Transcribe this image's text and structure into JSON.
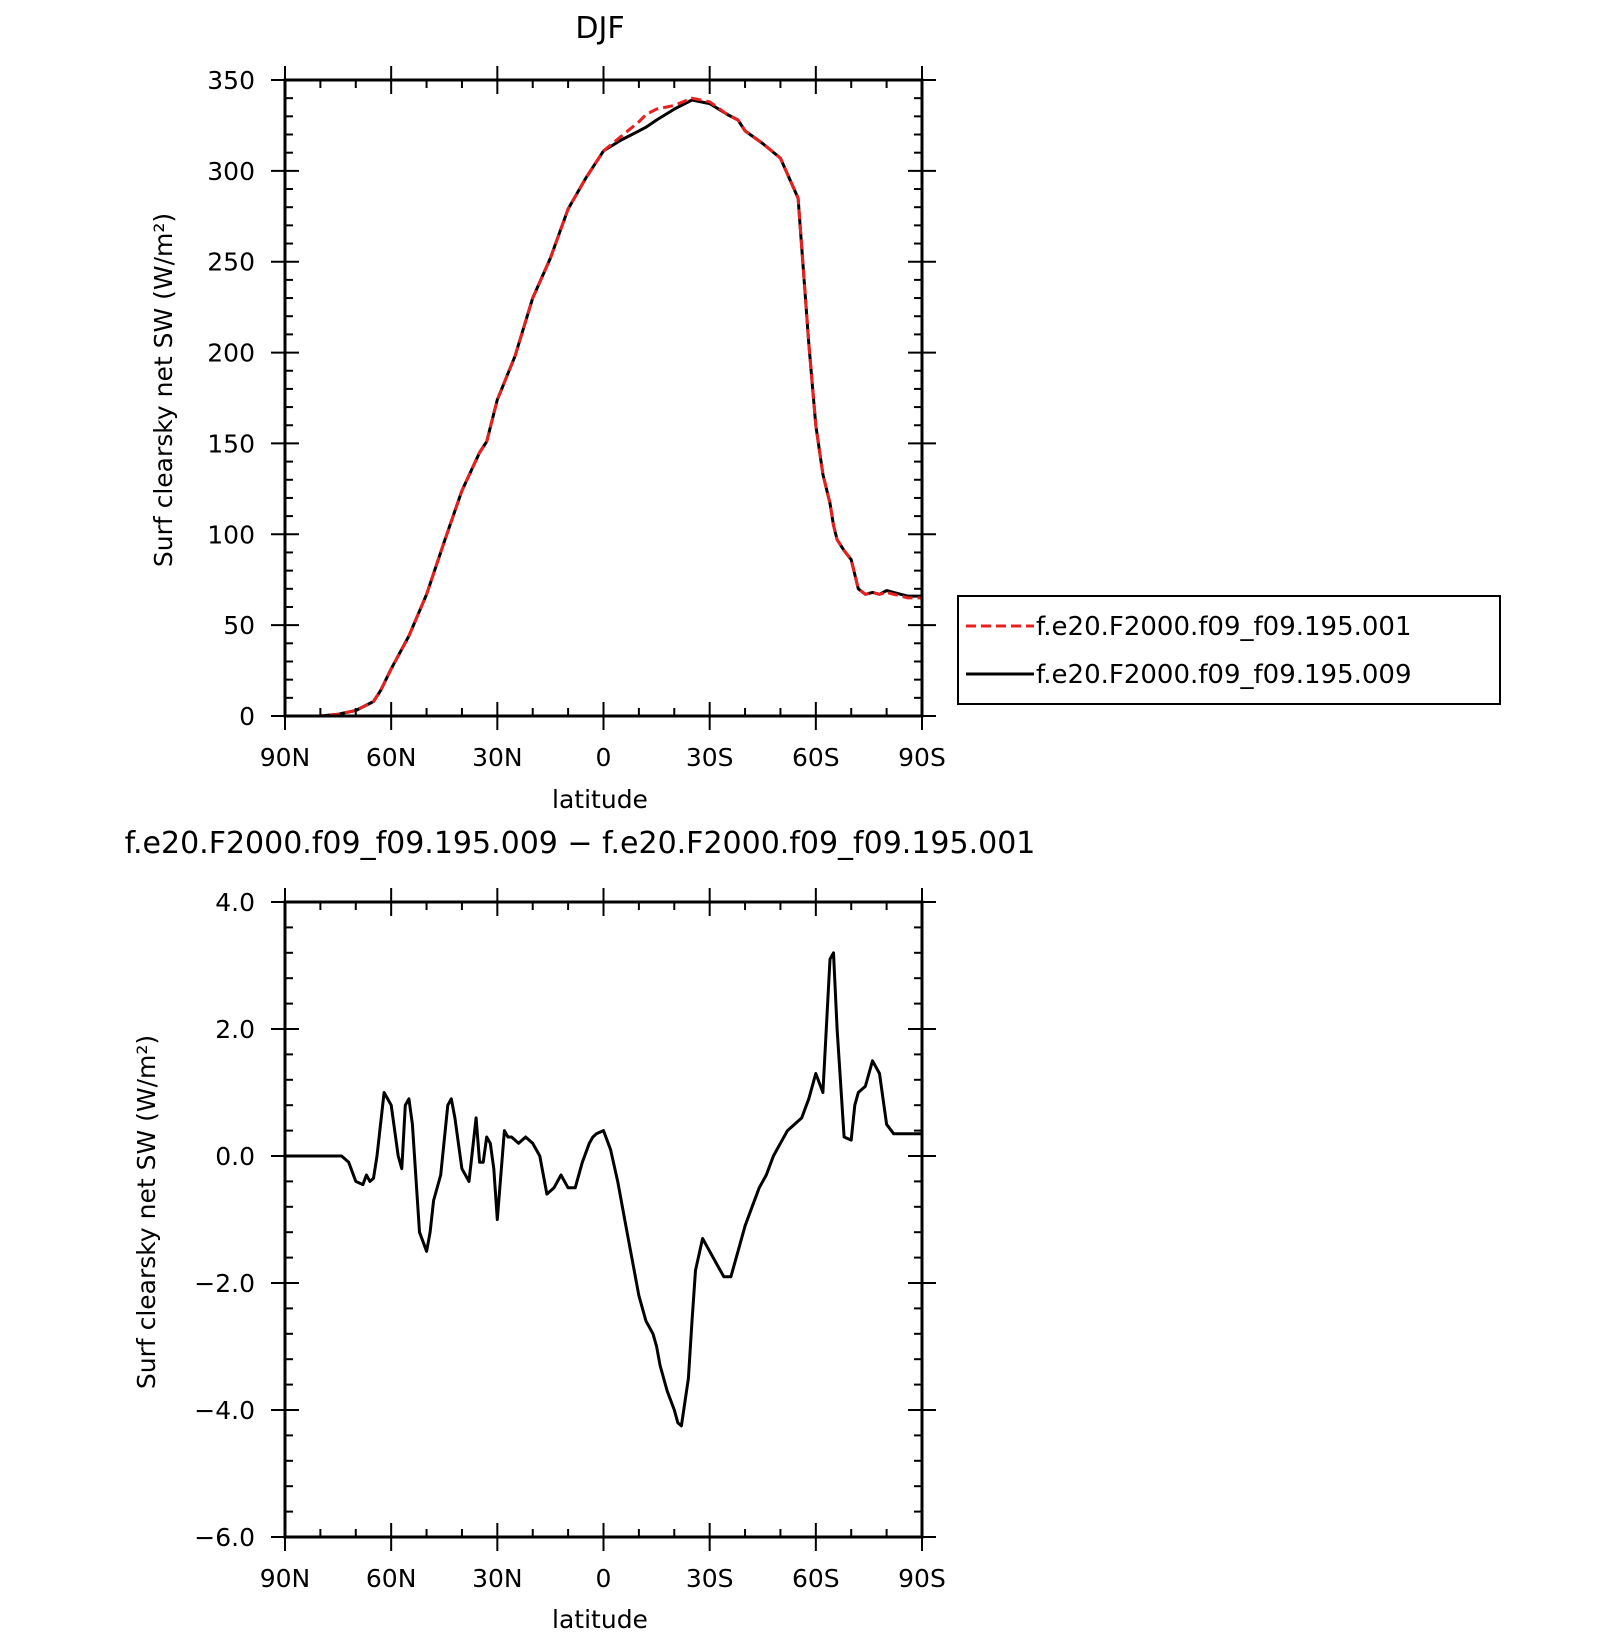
{
  "chart_data": [
    {
      "type": "line",
      "title": "DJF",
      "xlabel": "latitude",
      "ylabel": "Surf clearsky net SW (W/m²)",
      "xlim": [
        90,
        -90
      ],
      "ylim": [
        0,
        350
      ],
      "xtick_values": [
        90,
        60,
        30,
        0,
        -30,
        -60,
        -90
      ],
      "xtick_labels": [
        "90N",
        "60N",
        "30N",
        "0",
        "30S",
        "60S",
        "90S"
      ],
      "ytick_values": [
        0,
        50,
        100,
        150,
        200,
        250,
        300,
        350
      ],
      "ytick_labels": [
        "0",
        "50",
        "100",
        "150",
        "200",
        "250",
        "300",
        "350"
      ],
      "legend_position": "right",
      "series": [
        {
          "name": "f.e20.F2000.f09_f09.195.001",
          "color": "#e8201e",
          "dash": "dashed",
          "x": [
            90,
            80,
            75,
            70,
            65,
            63,
            60,
            55,
            50,
            45,
            40,
            35,
            33,
            30,
            25,
            20,
            15,
            10,
            5,
            0,
            -5,
            -10,
            -12,
            -15,
            -20,
            -25,
            -30,
            -35,
            -38,
            -40,
            -45,
            -50,
            -55,
            -58,
            -60,
            -62,
            -64,
            -65,
            -66,
            -68,
            -70,
            -72,
            -74,
            -76,
            -78,
            -80,
            -82,
            -84,
            -86,
            -88,
            -90
          ],
          "y": [
            0,
            0,
            1,
            3,
            8,
            14,
            26,
            44,
            67,
            96,
            124,
            145,
            151,
            174,
            198,
            230,
            252,
            279,
            296,
            311,
            319,
            327,
            331,
            334,
            336,
            340,
            338,
            331,
            328,
            322,
            315,
            307,
            285,
            205,
            160,
            133,
            117,
            105,
            97,
            91,
            86,
            70,
            67,
            68,
            67,
            68,
            67,
            66,
            65,
            65,
            65
          ]
        },
        {
          "name": "f.e20.F2000.f09_f09.195.009",
          "color": "#000000",
          "dash": "solid",
          "x": [
            90,
            80,
            75,
            70,
            65,
            63,
            60,
            55,
            50,
            45,
            40,
            35,
            33,
            30,
            25,
            20,
            15,
            10,
            5,
            0,
            -5,
            -10,
            -12,
            -15,
            -20,
            -25,
            -30,
            -35,
            -38,
            -40,
            -45,
            -50,
            -55,
            -58,
            -60,
            -62,
            -64,
            -65,
            -66,
            -68,
            -70,
            -72,
            -74,
            -76,
            -78,
            -80,
            -82,
            -84,
            -86,
            -88,
            -90
          ],
          "y": [
            0,
            0,
            1,
            3,
            8,
            14,
            26,
            44,
            67,
            96,
            124,
            145,
            151,
            174,
            198,
            230,
            252,
            279,
            296,
            311,
            317,
            322,
            324,
            328,
            334,
            339,
            337,
            331,
            328,
            322,
            315,
            307,
            285,
            205,
            160,
            133,
            117,
            105,
            97,
            91,
            86,
            70,
            67,
            68,
            67,
            69,
            68,
            67,
            66,
            66,
            66
          ]
        }
      ]
    },
    {
      "type": "line",
      "title": "f.e20.F2000.f09_f09.195.009 − f.e20.F2000.f09_f09.195.001",
      "xlabel": "latitude",
      "ylabel": "Surf clearsky net SW (W/m²)",
      "xlim": [
        90,
        -90
      ],
      "ylim": [
        -6,
        4
      ],
      "xtick_values": [
        90,
        60,
        30,
        0,
        -30,
        -60,
        -90
      ],
      "xtick_labels": [
        "90N",
        "60N",
        "30N",
        "0",
        "30S",
        "60S",
        "90S"
      ],
      "ytick_values": [
        4,
        2,
        0,
        -2,
        -4,
        -6
      ],
      "ytick_labels": [
        "4.0",
        "2.0",
        "0.0",
        "−2.0",
        "−4.0",
        "−6.0"
      ],
      "series": [
        {
          "color": "#000000",
          "x": [
            90,
            86,
            82,
            78,
            76,
            74,
            72,
            70,
            68,
            67,
            66,
            65,
            64,
            62,
            60,
            58,
            57,
            56,
            55,
            54,
            52,
            50,
            49,
            48,
            46,
            44,
            43,
            42,
            40,
            38,
            36,
            35,
            34,
            33,
            32,
            31,
            30,
            28,
            27,
            26,
            24,
            22,
            20,
            18,
            16,
            14,
            13,
            12,
            10,
            8,
            6,
            4,
            3,
            2,
            0,
            -2,
            -4,
            -6,
            -8,
            -10,
            -12,
            -14,
            -15,
            -16,
            -18,
            -20,
            -21,
            -22,
            -24,
            -25,
            -26,
            -28,
            -30,
            -32,
            -34,
            -36,
            -38,
            -40,
            -42,
            -44,
            -46,
            -48,
            -50,
            -52,
            -54,
            -56,
            -58,
            -60,
            -62,
            -64,
            -65,
            -66,
            -68,
            -70,
            -71,
            -72,
            -74,
            -76,
            -78,
            -80,
            -82,
            -84,
            -86,
            -88,
            -90
          ],
          "y": [
            0,
            0,
            0,
            0,
            0,
            0,
            -0.1,
            -0.4,
            -0.45,
            -0.3,
            -0.4,
            -0.35,
            0,
            1.0,
            0.8,
            0,
            -0.2,
            0.8,
            0.9,
            0.5,
            -1.2,
            -1.5,
            -1.2,
            -0.7,
            -0.3,
            0.8,
            0.9,
            0.6,
            -0.2,
            -0.4,
            0.6,
            -0.1,
            -0.1,
            0.3,
            0.2,
            -0.2,
            -1.0,
            0.4,
            0.3,
            0.3,
            0.2,
            0.3,
            0.2,
            0,
            -0.6,
            -0.5,
            -0.4,
            -0.3,
            -0.5,
            -0.5,
            -0.1,
            0.2,
            0.3,
            0.35,
            0.4,
            0.1,
            -0.4,
            -1.0,
            -1.6,
            -2.2,
            -2.6,
            -2.8,
            -3.0,
            -3.3,
            -3.7,
            -4.0,
            -4.2,
            -4.25,
            -3.5,
            -2.6,
            -1.8,
            -1.3,
            -1.5,
            -1.7,
            -1.9,
            -1.9,
            -1.5,
            -1.1,
            -0.8,
            -0.5,
            -0.3,
            0,
            0.2,
            0.4,
            0.5,
            0.6,
            0.9,
            1.3,
            1.0,
            3.1,
            3.2,
            2.0,
            0.3,
            0.25,
            0.8,
            1.0,
            1.1,
            1.5,
            1.3,
            0.5,
            0.35,
            0.35,
            0.35,
            0.35,
            0.35
          ]
        }
      ]
    }
  ]
}
